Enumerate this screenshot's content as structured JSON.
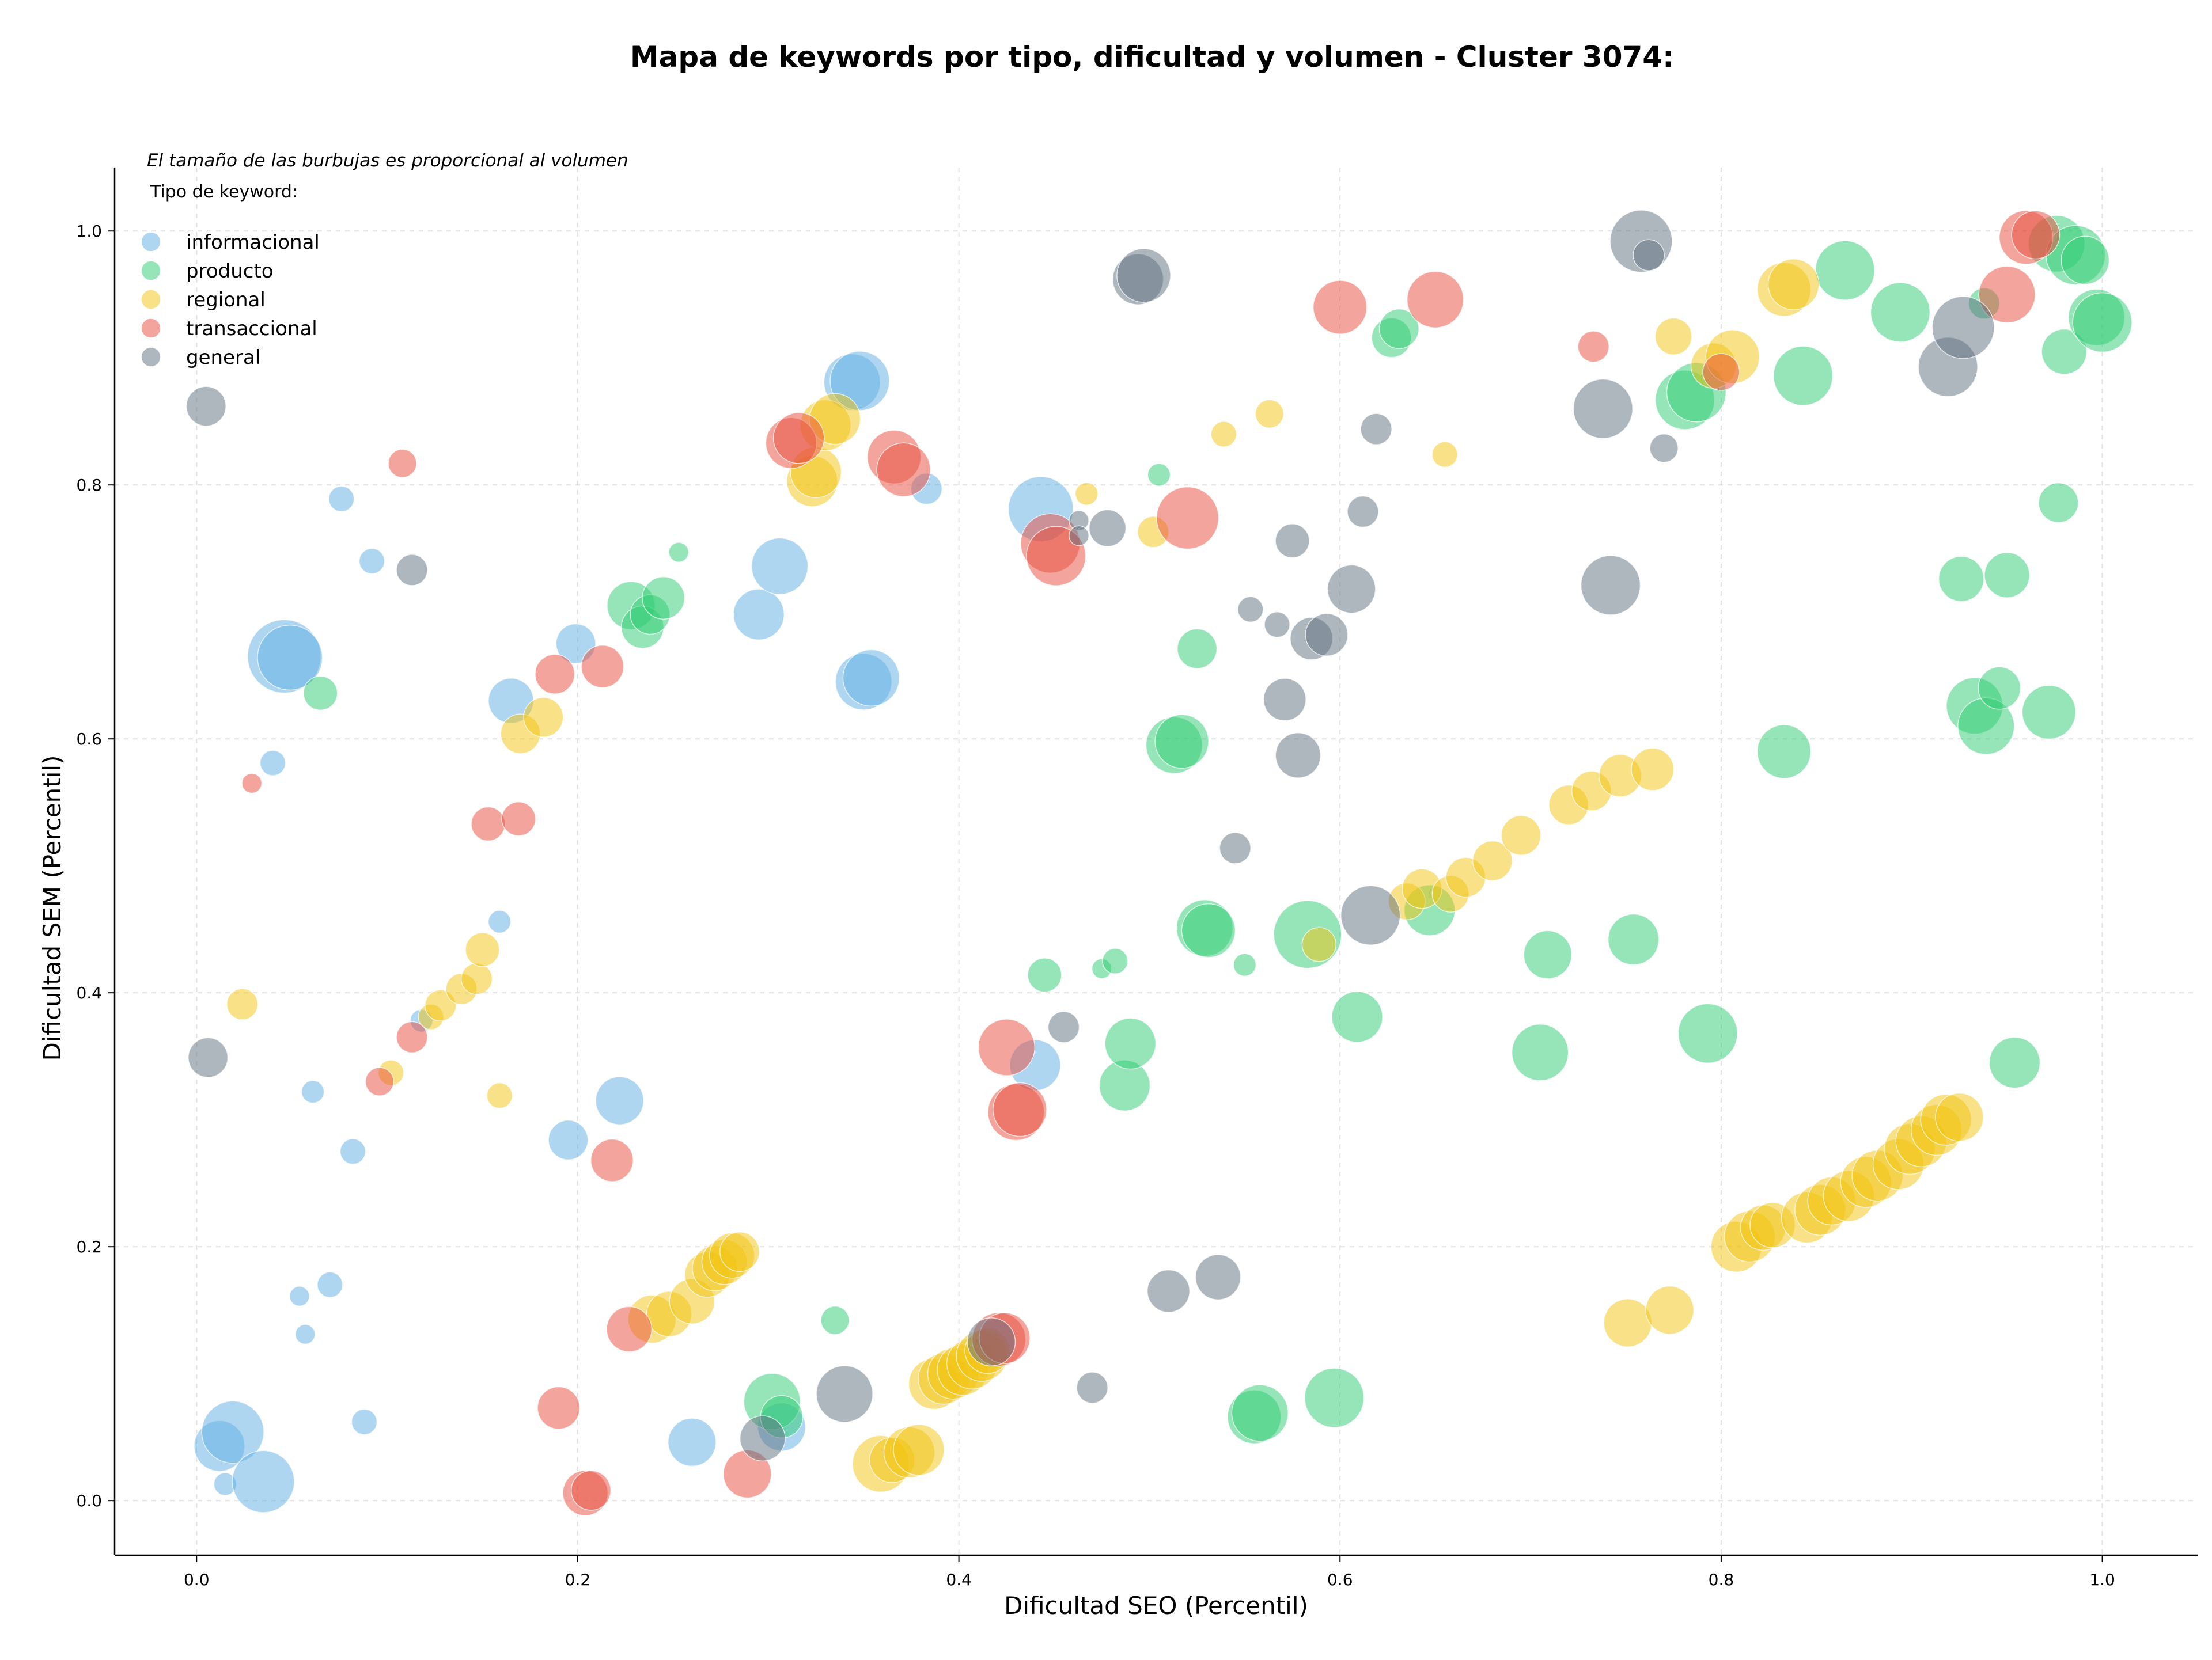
{
  "chart_data": {
    "type": "scatter",
    "title": "Mapa de keywords por tipo, dificultad y volumen - Cluster 3074:",
    "xlabel": "Dificultad SEO (Percentil)",
    "ylabel": "Dificultad SEM (Percentil)",
    "note": "El tamaño de las burbujas es proporcional al volumen",
    "legend_title": "Tipo de keyword:",
    "legend_position": "top-left",
    "xlim": [
      -0.043,
      1.05
    ],
    "ylim": [
      -0.043,
      1.05
    ],
    "xticks": [
      "0.0",
      "0.2",
      "0.4",
      "0.6",
      "0.8",
      "1.0"
    ],
    "yticks": [
      "0.0",
      "0.2",
      "0.4",
      "0.6",
      "0.8",
      "1.0"
    ],
    "grid": true,
    "series": [
      {
        "name": "informacional",
        "color": "#5dade2",
        "points": [
          [
            0.012,
            0.043,
            18
          ],
          [
            0.019,
            0.054,
            22
          ],
          [
            0.015,
            0.013,
            8
          ],
          [
            0.035,
            0.015,
            22
          ],
          [
            0.057,
            0.131,
            7
          ],
          [
            0.054,
            0.161,
            7
          ],
          [
            0.07,
            0.17,
            9
          ],
          [
            0.088,
            0.062,
            9
          ],
          [
            0.082,
            0.275,
            9
          ],
          [
            0.061,
            0.322,
            8
          ],
          [
            0.118,
            0.378,
            8
          ],
          [
            0.159,
            0.456,
            8
          ],
          [
            0.195,
            0.284,
            14
          ],
          [
            0.222,
            0.315,
            17
          ],
          [
            0.26,
            0.046,
            17
          ],
          [
            0.307,
            0.058,
            17
          ],
          [
            0.04,
            0.581,
            9
          ],
          [
            0.046,
            0.665,
            26
          ],
          [
            0.049,
            0.664,
            23
          ],
          [
            0.165,
            0.63,
            16
          ],
          [
            0.199,
            0.675,
            14
          ],
          [
            0.076,
            0.789,
            9
          ],
          [
            0.092,
            0.74,
            9
          ],
          [
            0.295,
            0.698,
            18
          ],
          [
            0.306,
            0.736,
            20
          ],
          [
            0.35,
            0.645,
            20
          ],
          [
            0.354,
            0.648,
            20
          ],
          [
            0.344,
            0.881,
            20
          ],
          [
            0.348,
            0.882,
            21
          ],
          [
            0.383,
            0.797,
            11
          ],
          [
            0.443,
            0.781,
            23
          ],
          [
            0.44,
            0.343,
            18
          ]
        ]
      },
      {
        "name": "producto",
        "color": "#2ecc71",
        "points": [
          [
            0.065,
            0.636,
            12
          ],
          [
            0.228,
            0.705,
            17
          ],
          [
            0.234,
            0.688,
            15
          ],
          [
            0.238,
            0.698,
            14
          ],
          [
            0.245,
            0.711,
            15
          ],
          [
            0.253,
            0.747,
            7
          ],
          [
            0.335,
            0.142,
            10
          ],
          [
            0.302,
            0.078,
            20
          ],
          [
            0.307,
            0.066,
            15
          ],
          [
            0.445,
            0.414,
            12
          ],
          [
            0.475,
            0.419,
            7
          ],
          [
            0.482,
            0.425,
            9
          ],
          [
            0.487,
            0.327,
            18
          ],
          [
            0.49,
            0.36,
            18
          ],
          [
            0.505,
            0.808,
            8
          ],
          [
            0.513,
            0.595,
            20
          ],
          [
            0.517,
            0.598,
            19
          ],
          [
            0.525,
            0.671,
            14
          ],
          [
            0.529,
            0.451,
            20
          ],
          [
            0.531,
            0.449,
            19
          ],
          [
            0.55,
            0.422,
            8
          ],
          [
            0.555,
            0.066,
            19
          ],
          [
            0.558,
            0.069,
            20
          ],
          [
            0.583,
            0.446,
            24
          ],
          [
            0.597,
            0.081,
            21
          ],
          [
            0.609,
            0.381,
            18
          ],
          [
            0.627,
            0.916,
            14
          ],
          [
            0.631,
            0.923,
            14
          ],
          [
            0.647,
            0.465,
            18
          ],
          [
            0.705,
            0.353,
            20
          ],
          [
            0.709,
            0.43,
            17
          ],
          [
            0.754,
            0.442,
            18
          ],
          [
            0.781,
            0.867,
            21
          ],
          [
            0.787,
            0.873,
            21
          ],
          [
            0.793,
            0.368,
            21
          ],
          [
            0.833,
            0.59,
            19
          ],
          [
            0.843,
            0.886,
            21
          ],
          [
            0.865,
            0.969,
            21
          ],
          [
            0.894,
            0.936,
            21
          ],
          [
            0.926,
            0.726,
            16
          ],
          [
            0.938,
            0.943,
            11
          ],
          [
            0.933,
            0.626,
            20
          ],
          [
            0.939,
            0.61,
            20
          ],
          [
            0.946,
            0.64,
            15
          ],
          [
            0.95,
            0.729,
            16
          ],
          [
            0.954,
            0.345,
            18
          ],
          [
            0.972,
            0.621,
            19
          ],
          [
            0.977,
            0.786,
            14
          ],
          [
            0.98,
            0.905,
            16
          ],
          [
            0.976,
            0.99,
            20
          ],
          [
            0.986,
            0.981,
            21
          ],
          [
            0.991,
            0.977,
            17
          ],
          [
            0.997,
            0.932,
            20
          ],
          [
            1.0,
            0.928,
            21
          ]
        ]
      },
      {
        "name": "regional",
        "color": "#f1c40f",
        "points": [
          [
            0.024,
            0.391,
            11
          ],
          [
            0.102,
            0.337,
            9
          ],
          [
            0.123,
            0.381,
            9
          ],
          [
            0.128,
            0.39,
            11
          ],
          [
            0.139,
            0.403,
            11
          ],
          [
            0.147,
            0.411,
            11
          ],
          [
            0.15,
            0.434,
            12
          ],
          [
            0.159,
            0.319,
            9
          ],
          [
            0.17,
            0.604,
            14
          ],
          [
            0.182,
            0.617,
            14
          ],
          [
            0.239,
            0.143,
            17
          ],
          [
            0.248,
            0.147,
            16
          ],
          [
            0.26,
            0.157,
            16
          ],
          [
            0.268,
            0.178,
            16
          ],
          [
            0.272,
            0.183,
            16
          ],
          [
            0.277,
            0.188,
            16
          ],
          [
            0.281,
            0.193,
            16
          ],
          [
            0.285,
            0.196,
            14
          ],
          [
            0.323,
            0.803,
            18
          ],
          [
            0.325,
            0.81,
            18
          ],
          [
            0.33,
            0.847,
            18
          ],
          [
            0.335,
            0.852,
            18
          ],
          [
            0.359,
            0.029,
            20
          ],
          [
            0.365,
            0.032,
            16
          ],
          [
            0.374,
            0.038,
            18
          ],
          [
            0.379,
            0.04,
            18
          ],
          [
            0.387,
            0.092,
            18
          ],
          [
            0.392,
            0.096,
            18
          ],
          [
            0.397,
            0.1,
            18
          ],
          [
            0.402,
            0.103,
            18
          ],
          [
            0.407,
            0.108,
            18
          ],
          [
            0.412,
            0.114,
            18
          ],
          [
            0.415,
            0.118,
            16
          ],
          [
            0.467,
            0.793,
            8
          ],
          [
            0.502,
            0.763,
            11
          ],
          [
            0.539,
            0.84,
            9
          ],
          [
            0.563,
            0.856,
            10
          ],
          [
            0.589,
            0.438,
            12
          ],
          [
            0.635,
            0.472,
            13
          ],
          [
            0.643,
            0.482,
            14
          ],
          [
            0.655,
            0.824,
            9
          ],
          [
            0.658,
            0.478,
            13
          ],
          [
            0.666,
            0.491,
            14
          ],
          [
            0.68,
            0.504,
            14
          ],
          [
            0.695,
            0.524,
            14
          ],
          [
            0.72,
            0.548,
            14
          ],
          [
            0.732,
            0.559,
            14
          ],
          [
            0.747,
            0.571,
            15
          ],
          [
            0.751,
            0.14,
            17
          ],
          [
            0.764,
            0.576,
            15
          ],
          [
            0.773,
            0.15,
            17
          ],
          [
            0.775,
            0.917,
            13
          ],
          [
            0.796,
            0.894,
            16
          ],
          [
            0.806,
            0.901,
            19
          ],
          [
            0.808,
            0.2,
            18
          ],
          [
            0.815,
            0.208,
            18
          ],
          [
            0.822,
            0.215,
            16
          ],
          [
            0.827,
            0.217,
            16
          ],
          [
            0.833,
            0.954,
            19
          ],
          [
            0.838,
            0.958,
            18
          ],
          [
            0.845,
            0.223,
            18
          ],
          [
            0.852,
            0.229,
            18
          ],
          [
            0.858,
            0.236,
            17
          ],
          [
            0.867,
            0.24,
            18
          ],
          [
            0.876,
            0.251,
            18
          ],
          [
            0.882,
            0.256,
            18
          ],
          [
            0.893,
            0.265,
            18
          ],
          [
            0.899,
            0.277,
            18
          ],
          [
            0.905,
            0.283,
            18
          ],
          [
            0.913,
            0.292,
            18
          ],
          [
            0.918,
            0.3,
            18
          ],
          [
            0.925,
            0.302,
            17
          ]
        ]
      },
      {
        "name": "transaccional",
        "color": "#e74c3c",
        "points": [
          [
            0.029,
            0.565,
            7
          ],
          [
            0.108,
            0.817,
            10
          ],
          [
            0.096,
            0.33,
            10
          ],
          [
            0.113,
            0.365,
            11
          ],
          [
            0.153,
            0.533,
            12
          ],
          [
            0.169,
            0.537,
            12
          ],
          [
            0.19,
            0.073,
            15
          ],
          [
            0.188,
            0.651,
            14
          ],
          [
            0.204,
            0.006,
            16
          ],
          [
            0.207,
            0.008,
            14
          ],
          [
            0.213,
            0.657,
            15
          ],
          [
            0.218,
            0.268,
            15
          ],
          [
            0.227,
            0.135,
            16
          ],
          [
            0.289,
            0.021,
            17
          ],
          [
            0.312,
            0.833,
            18
          ],
          [
            0.316,
            0.837,
            18
          ],
          [
            0.366,
            0.822,
            19
          ],
          [
            0.371,
            0.812,
            19
          ],
          [
            0.421,
            0.127,
            19
          ],
          [
            0.424,
            0.128,
            18
          ],
          [
            0.425,
            0.357,
            20
          ],
          [
            0.43,
            0.306,
            20
          ],
          [
            0.432,
            0.308,
            19
          ],
          [
            0.448,
            0.754,
            21
          ],
          [
            0.451,
            0.744,
            21
          ],
          [
            0.52,
            0.774,
            22
          ],
          [
            0.6,
            0.94,
            19
          ],
          [
            0.65,
            0.946,
            20
          ],
          [
            0.733,
            0.909,
            11
          ],
          [
            0.8,
            0.889,
            13
          ],
          [
            0.95,
            0.95,
            20
          ],
          [
            0.96,
            0.995,
            19
          ],
          [
            0.965,
            0.997,
            17
          ]
        ]
      },
      {
        "name": "general",
        "color": "#5d6d7e",
        "points": [
          [
            0.005,
            0.862,
            14
          ],
          [
            0.006,
            0.349,
            14
          ],
          [
            0.113,
            0.733,
            11
          ],
          [
            0.297,
            0.049,
            16
          ],
          [
            0.34,
            0.084,
            20
          ],
          [
            0.417,
            0.125,
            17
          ],
          [
            0.455,
            0.373,
            11
          ],
          [
            0.463,
            0.772,
            7
          ],
          [
            0.463,
            0.76,
            7
          ],
          [
            0.47,
            0.089,
            11
          ],
          [
            0.478,
            0.766,
            13
          ],
          [
            0.494,
            0.962,
            18
          ],
          [
            0.497,
            0.965,
            19
          ],
          [
            0.51,
            0.165,
            15
          ],
          [
            0.536,
            0.176,
            16
          ],
          [
            0.545,
            0.514,
            11
          ],
          [
            0.553,
            0.702,
            9
          ],
          [
            0.567,
            0.69,
            9
          ],
          [
            0.571,
            0.631,
            15
          ],
          [
            0.575,
            0.756,
            12
          ],
          [
            0.578,
            0.587,
            16
          ],
          [
            0.585,
            0.679,
            15
          ],
          [
            0.593,
            0.682,
            15
          ],
          [
            0.606,
            0.718,
            17
          ],
          [
            0.612,
            0.779,
            11
          ],
          [
            0.616,
            0.461,
            21
          ],
          [
            0.619,
            0.844,
            11
          ],
          [
            0.738,
            0.86,
            21
          ],
          [
            0.742,
            0.721,
            21
          ],
          [
            0.758,
            0.992,
            22
          ],
          [
            0.762,
            0.981,
            11
          ],
          [
            0.77,
            0.829,
            10
          ],
          [
            0.919,
            0.893,
            21
          ],
          [
            0.927,
            0.924,
            22
          ]
        ]
      }
    ]
  }
}
